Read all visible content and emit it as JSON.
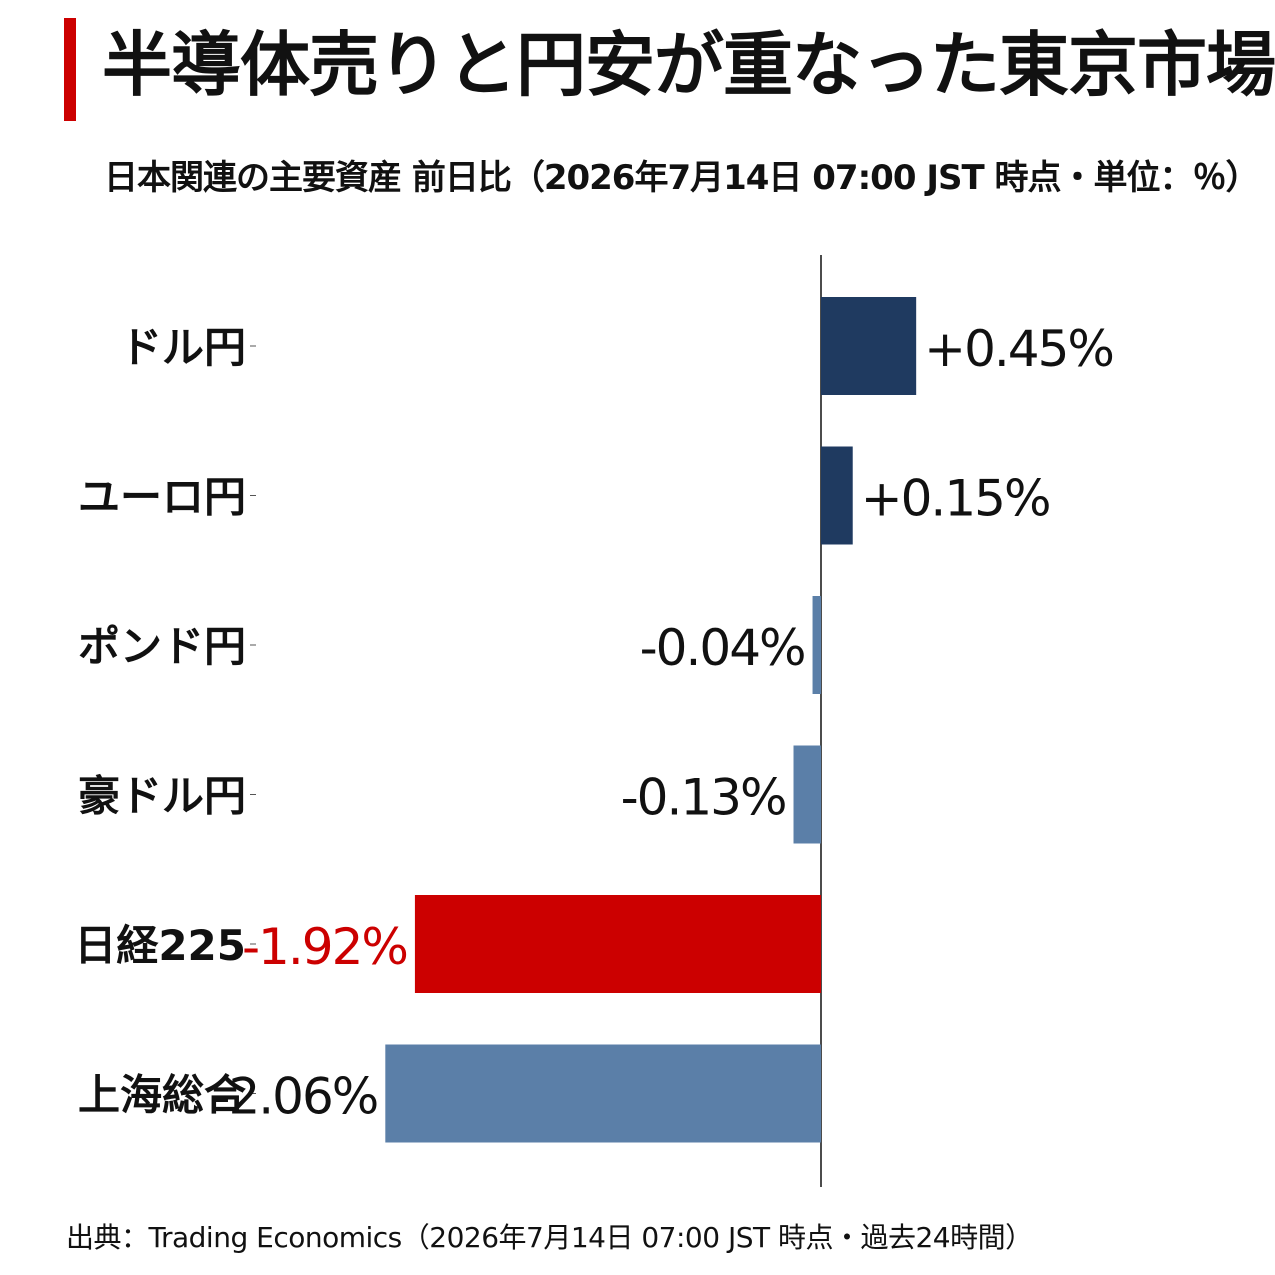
{
  "header": {
    "title": "半導体売りと円安が重なった東京市場",
    "subtitle": "日本関連の主要資産 前日比（2026年7月14日 07:00 JST 時点・単位：％）"
  },
  "footer": {
    "source": "出典：Trading Economics（2026年7月14日 07:00 JST 時点・過去24時間）"
  },
  "colors": {
    "accent": "#cc0000",
    "positive": "#1f3a60",
    "negative": "#5b7fa8",
    "highlight": "#cc0000"
  },
  "chart_data": {
    "type": "bar",
    "orientation": "horizontal",
    "categories": [
      "ドル円",
      "ユーロ円",
      "ポンド円",
      "豪ドル円",
      "日経225",
      "上海総合"
    ],
    "values": [
      0.45,
      0.15,
      -0.04,
      -0.13,
      -1.92,
      -2.06
    ],
    "data_labels": [
      "+0.45%",
      "+0.15%",
      "-0.04%",
      "-0.13%",
      "-1.92%",
      "-2.06%"
    ],
    "highlight_index": 4,
    "xlim": [
      -2.06,
      0.45
    ],
    "grid": false
  }
}
